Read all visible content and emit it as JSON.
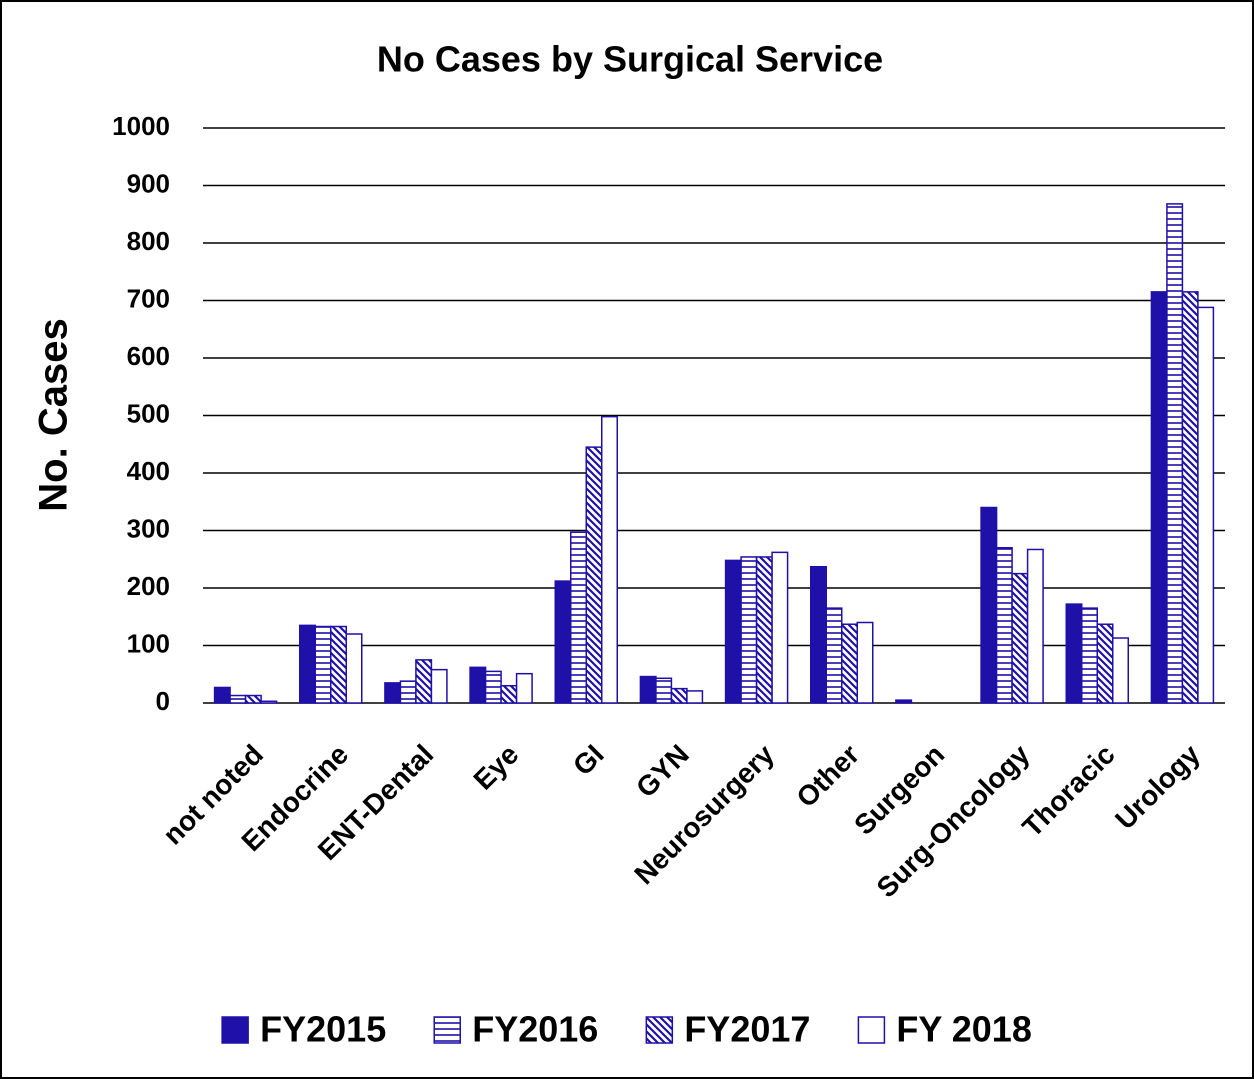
{
  "chart_data": {
    "type": "bar",
    "title": "No Cases by Surgical Service",
    "y_label": "No. Cases",
    "categories": [
      "not noted",
      "Endocrine",
      "ENT-Dental",
      "Eye",
      "GI",
      "GYN",
      "Neurosurgery",
      "Other",
      "Surgeon",
      "Surg-Oncology",
      "Thoracic",
      "Urology"
    ],
    "series": [
      {
        "name": "FY2015",
        "color": "#1f10a8",
        "pattern": "solid",
        "values": [
          27,
          135,
          35,
          62,
          212,
          46,
          248,
          237,
          5,
          340,
          172,
          715
        ]
      },
      {
        "name": "FY2016",
        "color": "#1f10a8",
        "pattern": "horizontal",
        "values": [
          13,
          133,
          38,
          55,
          297,
          43,
          254,
          165,
          0,
          270,
          165,
          868
        ]
      },
      {
        "name": "FY2017",
        "color": "#1f10a8",
        "pattern": "diagonal",
        "values": [
          13,
          133,
          75,
          30,
          445,
          25,
          254,
          137,
          0,
          225,
          137,
          715
        ]
      },
      {
        "name": "FY 2018",
        "color": "#1f10a8",
        "pattern": "none",
        "values": [
          3,
          120,
          58,
          51,
          498,
          21,
          262,
          140,
          0,
          267,
          113,
          688
        ]
      }
    ],
    "ylim": [
      0,
      1000
    ],
    "yticks": [
      0,
      100,
      200,
      300,
      400,
      500,
      600,
      700,
      800,
      900,
      1000
    ],
    "grid": true,
    "legend": "bottom"
  }
}
